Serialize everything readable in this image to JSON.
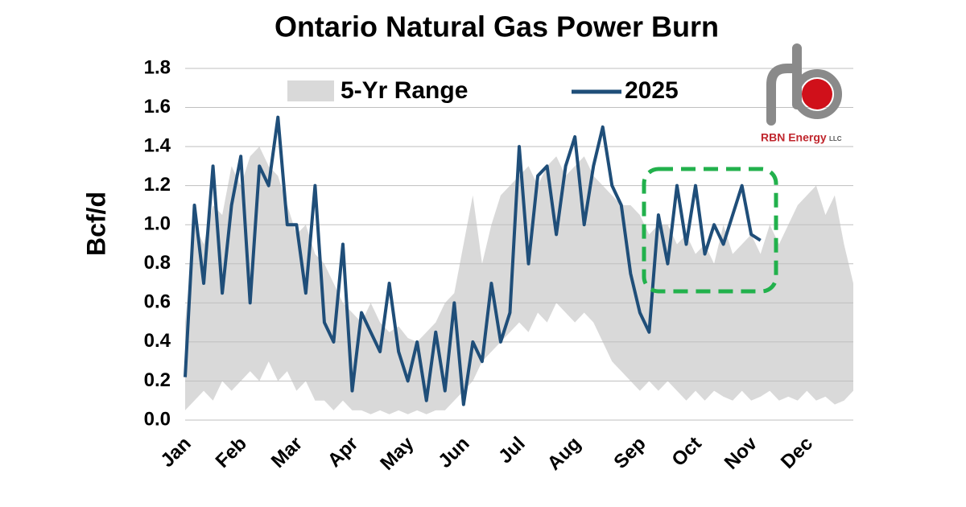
{
  "chart_data": {
    "type": "line",
    "title": "Ontario Natural Gas Power Burn",
    "y_label": "Bcf/d",
    "logo_text": "RBN Energy",
    "logo_suffix": "LLC",
    "categories": [
      "Jan",
      null,
      null,
      null,
      null,
      null,
      "Feb",
      null,
      null,
      null,
      null,
      null,
      "Mar",
      null,
      null,
      null,
      null,
      null,
      "Apr",
      null,
      null,
      null,
      null,
      null,
      "May",
      null,
      null,
      null,
      null,
      null,
      "Jun",
      null,
      null,
      null,
      null,
      null,
      "Jul",
      null,
      null,
      null,
      null,
      null,
      "Aug",
      null,
      null,
      null,
      null,
      null,
      null,
      "Sep",
      null,
      null,
      null,
      null,
      null,
      "Oct",
      null,
      null,
      null,
      null,
      null,
      "Nov",
      null,
      null,
      null,
      null,
      null,
      "Dec",
      null,
      null,
      null,
      null,
      null
    ],
    "ylim": [
      0,
      1.8
    ],
    "yticks": [
      {
        "value": 0,
        "label": "0.0"
      },
      {
        "value": 0.2,
        "label": "0.2"
      },
      {
        "value": 0.4,
        "label": "0.4"
      },
      {
        "value": 0.6,
        "label": "0.6"
      },
      {
        "value": 0.8,
        "label": "0.8"
      },
      {
        "value": 1,
        "label": "1.0"
      },
      {
        "value": 1.2,
        "label": "1.2"
      },
      {
        "value": 1.4,
        "label": "1.4"
      },
      {
        "value": 1.6,
        "label": "1.6"
      },
      {
        "value": 1.8,
        "label": "1.8"
      }
    ],
    "grid": true,
    "range": {
      "name": "5-Yr Range",
      "color": "#d9d9d9",
      "upper": [
        0.5,
        1.0,
        0.9,
        1.1,
        1.05,
        1.3,
        1.2,
        1.35,
        1.4,
        1.3,
        1.25,
        1.1,
        0.95,
        1.0,
        0.85,
        0.8,
        0.7,
        0.6,
        0.55,
        0.5,
        0.6,
        0.5,
        0.45,
        0.48,
        0.42,
        0.4,
        0.45,
        0.5,
        0.6,
        0.65,
        0.9,
        1.15,
        0.8,
        1.0,
        1.15,
        1.2,
        1.25,
        1.3,
        1.2,
        1.3,
        1.35,
        1.25,
        1.3,
        1.35,
        1.25,
        1.2,
        1.15,
        1.1,
        1.1,
        1.05,
        0.95,
        1.0,
        1.0,
        0.9,
        0.95,
        0.85,
        0.9,
        0.8,
        1.0,
        0.85,
        0.9,
        0.95,
        0.85,
        1.0,
        0.9,
        1.0,
        1.1,
        1.15,
        1.2,
        1.05,
        1.15,
        0.9,
        0.7
      ],
      "lower": [
        0.05,
        0.1,
        0.15,
        0.1,
        0.2,
        0.15,
        0.2,
        0.25,
        0.2,
        0.3,
        0.2,
        0.25,
        0.15,
        0.2,
        0.1,
        0.1,
        0.05,
        0.1,
        0.05,
        0.05,
        0.03,
        0.05,
        0.03,
        0.05,
        0.03,
        0.05,
        0.03,
        0.05,
        0.05,
        0.1,
        0.15,
        0.2,
        0.3,
        0.35,
        0.4,
        0.45,
        0.5,
        0.45,
        0.55,
        0.5,
        0.6,
        0.55,
        0.5,
        0.55,
        0.5,
        0.4,
        0.3,
        0.25,
        0.2,
        0.15,
        0.2,
        0.15,
        0.2,
        0.15,
        0.1,
        0.15,
        0.1,
        0.15,
        0.12,
        0.1,
        0.15,
        0.1,
        0.12,
        0.15,
        0.1,
        0.12,
        0.1,
        0.15,
        0.1,
        0.12,
        0.08,
        0.1,
        0.15
      ]
    },
    "series": [
      {
        "name": "2025",
        "color": "#1f4e79",
        "values": [
          0.22,
          1.1,
          0.7,
          1.3,
          0.65,
          1.1,
          1.35,
          0.6,
          1.3,
          1.2,
          1.55,
          1.0,
          1.0,
          0.65,
          1.2,
          0.5,
          0.4,
          0.9,
          0.15,
          0.55,
          0.45,
          0.35,
          0.7,
          0.35,
          0.2,
          0.4,
          0.1,
          0.45,
          0.15,
          0.6,
          0.08,
          0.4,
          0.3,
          0.7,
          0.4,
          0.55,
          1.4,
          0.8,
          1.25,
          1.3,
          0.95,
          1.3,
          1.45,
          1.0,
          1.3,
          1.5,
          1.2,
          1.1,
          0.75,
          0.55,
          0.45,
          1.05,
          0.8,
          1.2,
          0.9,
          1.2,
          0.85,
          1.0,
          0.9,
          1.05,
          1.2,
          0.95,
          0.92,
          null,
          null,
          null,
          null,
          null,
          null,
          null,
          null,
          null,
          null
        ]
      }
    ]
  }
}
